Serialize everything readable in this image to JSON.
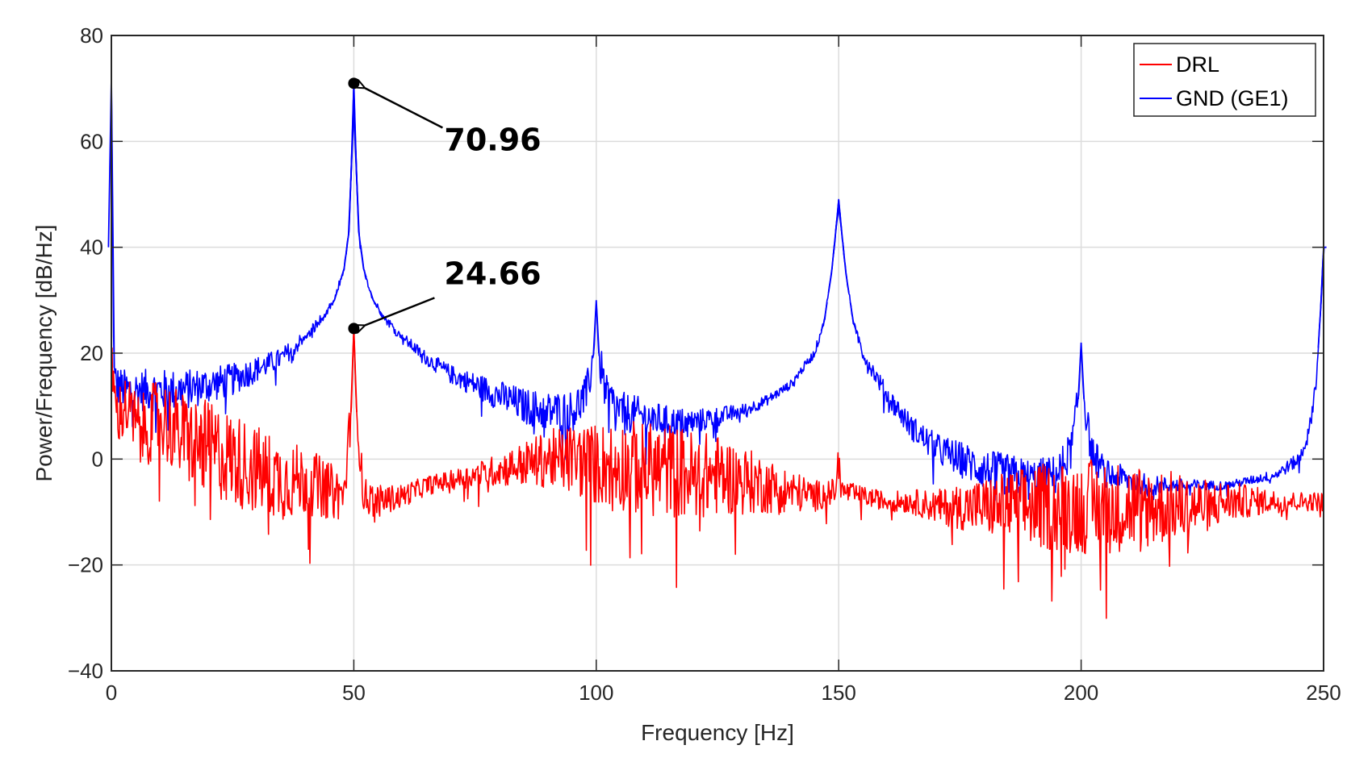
{
  "chart_data": {
    "type": "line",
    "title": "",
    "xlabel": "Frequency [Hz]",
    "ylabel": "Power/Frequency [dB/Hz]",
    "xlim": [
      0,
      250
    ],
    "ylim": [
      -40,
      80
    ],
    "xticks": [
      0,
      50,
      100,
      150,
      200,
      250
    ],
    "yticks": [
      -40,
      -20,
      0,
      20,
      40,
      60,
      80
    ],
    "xtick_labels": [
      "0",
      "50",
      "100",
      "150",
      "200",
      "250"
    ],
    "ytick_labels": [
      "−40",
      "−20",
      "0",
      "20",
      "40",
      "60",
      "80"
    ],
    "grid": true,
    "legend_position": "top-right",
    "series": [
      {
        "name": "DRL",
        "color": "#ff0000",
        "points": [
          [
            0,
            20
          ],
          [
            1,
            8
          ],
          [
            3,
            10
          ],
          [
            6,
            5
          ],
          [
            10,
            8
          ],
          [
            15,
            4
          ],
          [
            20,
            2
          ],
          [
            25,
            0
          ],
          [
            30,
            -2
          ],
          [
            35,
            -4
          ],
          [
            40,
            -4
          ],
          [
            45,
            -6
          ],
          [
            48,
            -7
          ],
          [
            49.5,
            10
          ],
          [
            50,
            24.66
          ],
          [
            50.5,
            10
          ],
          [
            52,
            -7
          ],
          [
            55,
            -8
          ],
          [
            60,
            -7
          ],
          [
            65,
            -5
          ],
          [
            70,
            -4
          ],
          [
            75,
            -3
          ],
          [
            80,
            -2
          ],
          [
            85,
            -1
          ],
          [
            90,
            0
          ],
          [
            95,
            0
          ],
          [
            100,
            -1
          ],
          [
            105,
            -1
          ],
          [
            110,
            -2
          ],
          [
            115,
            -2
          ],
          [
            120,
            -3
          ],
          [
            125,
            -3
          ],
          [
            130,
            -4
          ],
          [
            135,
            -5
          ],
          [
            140,
            -6
          ],
          [
            145,
            -7
          ],
          [
            149.5,
            -6
          ],
          [
            150,
            2
          ],
          [
            150.5,
            -6
          ],
          [
            155,
            -7
          ],
          [
            160,
            -8
          ],
          [
            165,
            -8
          ],
          [
            170,
            -9
          ],
          [
            175,
            -9
          ],
          [
            180,
            -9
          ],
          [
            185,
            -9
          ],
          [
            190,
            -9
          ],
          [
            195,
            -9
          ],
          [
            200,
            -9
          ],
          [
            205,
            -9
          ],
          [
            210,
            -9
          ],
          [
            215,
            -9
          ],
          [
            220,
            -9
          ],
          [
            225,
            -9
          ],
          [
            230,
            -8
          ],
          [
            235,
            -8
          ],
          [
            240,
            -8
          ],
          [
            245,
            -8
          ],
          [
            250,
            -8
          ]
        ]
      },
      {
        "name": "GND (GE1)",
        "color": "#0000ff",
        "points": [
          [
            0,
            72
          ],
          [
            0.5,
            18
          ],
          [
            1,
            14
          ],
          [
            3,
            13
          ],
          [
            5,
            13
          ],
          [
            10,
            13
          ],
          [
            15,
            13
          ],
          [
            20,
            14
          ],
          [
            25,
            15
          ],
          [
            30,
            17
          ],
          [
            35,
            19
          ],
          [
            40,
            23
          ],
          [
            44,
            27
          ],
          [
            46,
            30
          ],
          [
            48,
            36
          ],
          [
            49,
            43
          ],
          [
            49.5,
            55
          ],
          [
            50,
            70.96
          ],
          [
            50.5,
            55
          ],
          [
            51,
            43
          ],
          [
            52,
            36
          ],
          [
            54,
            30
          ],
          [
            56,
            27
          ],
          [
            60,
            23
          ],
          [
            65,
            19
          ],
          [
            70,
            16
          ],
          [
            75,
            14
          ],
          [
            80,
            12
          ],
          [
            85,
            10
          ],
          [
            90,
            9
          ],
          [
            95,
            9
          ],
          [
            98,
            12
          ],
          [
            99.5,
            20
          ],
          [
            100,
            30
          ],
          [
            100.5,
            20
          ],
          [
            102,
            12
          ],
          [
            105,
            9
          ],
          [
            110,
            8
          ],
          [
            115,
            7
          ],
          [
            120,
            7
          ],
          [
            125,
            8
          ],
          [
            130,
            9
          ],
          [
            135,
            11
          ],
          [
            140,
            14
          ],
          [
            145,
            20
          ],
          [
            147,
            26
          ],
          [
            148.5,
            35
          ],
          [
            149.5,
            44
          ],
          [
            150,
            49
          ],
          [
            150.5,
            44
          ],
          [
            151.5,
            35
          ],
          [
            153,
            26
          ],
          [
            155,
            20
          ],
          [
            160,
            12
          ],
          [
            165,
            6
          ],
          [
            170,
            2
          ],
          [
            175,
            0
          ],
          [
            180,
            -2
          ],
          [
            185,
            -3
          ],
          [
            190,
            -4
          ],
          [
            195,
            -3
          ],
          [
            198,
            2
          ],
          [
            199.5,
            12
          ],
          [
            200,
            22
          ],
          [
            200.5,
            12
          ],
          [
            202,
            2
          ],
          [
            205,
            -3
          ],
          [
            210,
            -4
          ],
          [
            215,
            -5
          ],
          [
            220,
            -5
          ],
          [
            225,
            -5
          ],
          [
            230,
            -5
          ],
          [
            235,
            -4
          ],
          [
            240,
            -3
          ],
          [
            245,
            0
          ],
          [
            247,
            5
          ],
          [
            248.5,
            15
          ],
          [
            249.5,
            30
          ],
          [
            250,
            40
          ]
        ]
      }
    ],
    "annotations": [
      {
        "text": "70.96",
        "x": 50,
        "y": 70.96
      },
      {
        "text": "24.66",
        "x": 50,
        "y": 24.66
      }
    ]
  }
}
